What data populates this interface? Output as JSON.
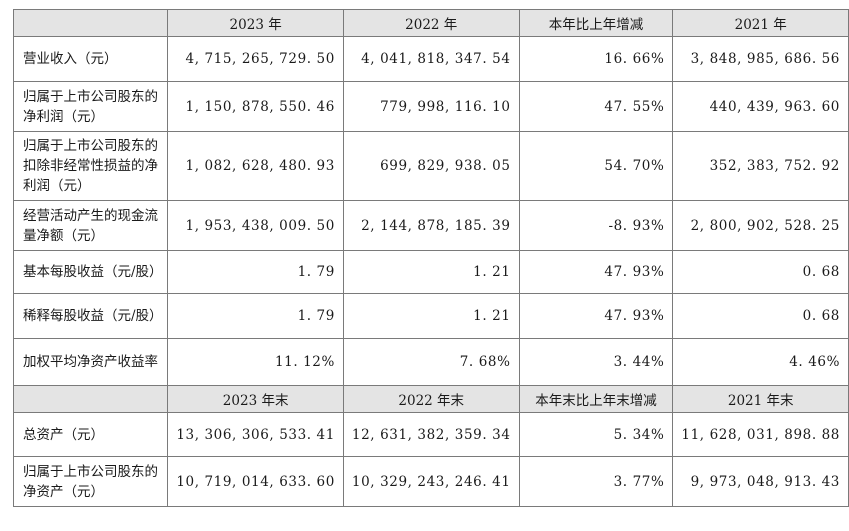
{
  "header1": [
    "",
    "2023 年",
    "2022 年",
    "本年比上年增减",
    "2021 年"
  ],
  "header2": [
    "",
    "2023 年末",
    "2022 年末",
    "本年末比上年末增减",
    "2021 年末"
  ],
  "rows1": [
    {
      "label": "营业收入（元）",
      "values": [
        "4, 715, 265, 729. 50",
        "4, 041, 818, 347. 54",
        "16. 66%",
        "3, 848, 985, 686. 56"
      ]
    },
    {
      "label": "归属于上市公司股东的净利润（元）",
      "values": [
        "1, 150, 878, 550. 46",
        "779, 998, 116. 10",
        "47. 55%",
        "440, 439, 963. 60"
      ]
    },
    {
      "label": "归属于上市公司股东的扣除非经常性损益的净利润（元）",
      "values": [
        "1, 082, 628, 480. 93",
        "699, 829, 938. 05",
        "54. 70%",
        "352, 383, 752. 92"
      ]
    },
    {
      "label": "经营活动产生的现金流量净额（元）",
      "values": [
        "1, 953, 438, 009. 50",
        "2, 144, 878, 185. 39",
        "-8. 93%",
        "2, 800, 902, 528. 25"
      ]
    },
    {
      "label": "基本每股收益（元/股）",
      "values": [
        "1. 79",
        "1. 21",
        "47. 93%",
        "0. 68"
      ]
    },
    {
      "label": "稀释每股收益（元/股）",
      "values": [
        "1. 79",
        "1. 21",
        "47. 93%",
        "0. 68"
      ]
    },
    {
      "label": "加权平均净资产收益率",
      "values": [
        "11. 12%",
        "7. 68%",
        "3. 44%",
        "4. 46%"
      ]
    }
  ],
  "rows2": [
    {
      "label": "总资产（元）",
      "values": [
        "13, 306, 306, 533. 41",
        "12, 631, 382, 359. 34",
        "5. 34%",
        "11, 628, 031, 898. 88"
      ]
    },
    {
      "label": "归属于上市公司股东的净资产（元）",
      "values": [
        "10, 719, 014, 633. 60",
        "10, 329, 243, 246. 41",
        "3. 77%",
        "9, 973, 048, 913. 43"
      ]
    }
  ]
}
